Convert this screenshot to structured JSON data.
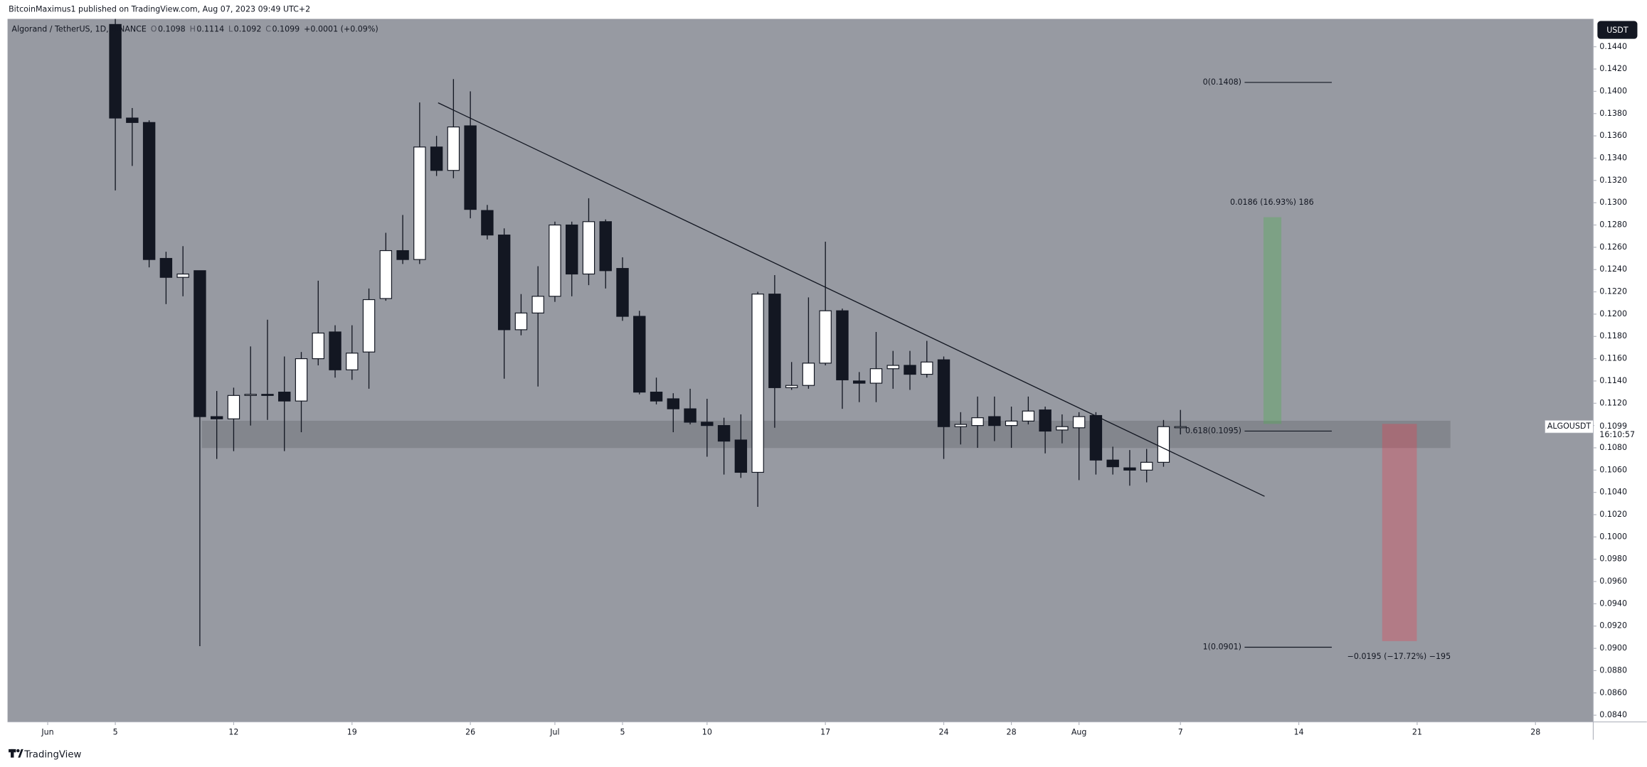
{
  "header": {
    "publisher": "BitcoinMaximus1 published on TradingView.com, Aug 07, 2023 09:49 UTC+2",
    "symbol": "Algorand / TetherUS, 1D, BINANCE",
    "legend_ohlc": [
      {
        "label": "O",
        "value": 0.1098
      },
      {
        "label": "H",
        "value": 0.1114
      },
      {
        "label": "L",
        "value": 0.1092
      },
      {
        "label": "C",
        "value": 0.1099
      }
    ],
    "change": "+0.0001 (+0.09%)",
    "currency": "USDT"
  },
  "footer": "TradingView",
  "chart_data": {
    "type": "candlestick",
    "x": [
      "2023-06-05",
      "2023-06-06",
      "2023-06-07",
      "2023-06-08",
      "2023-06-09",
      "2023-06-10",
      "2023-06-11",
      "2023-06-12",
      "2023-06-13",
      "2023-06-14",
      "2023-06-15",
      "2023-06-16",
      "2023-06-17",
      "2023-06-18",
      "2023-06-19",
      "2023-06-20",
      "2023-06-21",
      "2023-06-22",
      "2023-06-23",
      "2023-06-24",
      "2023-06-25",
      "2023-06-26",
      "2023-06-27",
      "2023-06-28",
      "2023-06-29",
      "2023-06-30",
      "2023-07-01",
      "2023-07-02",
      "2023-07-03",
      "2023-07-04",
      "2023-07-05",
      "2023-07-06",
      "2023-07-07",
      "2023-07-08",
      "2023-07-09",
      "2023-07-10",
      "2023-07-11",
      "2023-07-12",
      "2023-07-13",
      "2023-07-14",
      "2023-07-15",
      "2023-07-16",
      "2023-07-17",
      "2023-07-18",
      "2023-07-19",
      "2023-07-20",
      "2023-07-21",
      "2023-07-22",
      "2023-07-23",
      "2023-07-24",
      "2023-07-25",
      "2023-07-26",
      "2023-07-27",
      "2023-07-28",
      "2023-07-29",
      "2023-07-30",
      "2023-07-31",
      "2023-08-01",
      "2023-08-02",
      "2023-08-03",
      "2023-08-04",
      "2023-08-05",
      "2023-08-06",
      "2023-08-07"
    ],
    "open": [
      0.146,
      0.1376,
      0.1372,
      0.125,
      0.1233,
      0.1239,
      0.1108,
      0.1106,
      0.1127,
      0.1128,
      0.113,
      0.1122,
      0.116,
      0.1184,
      0.115,
      0.1166,
      0.1214,
      0.1257,
      0.1249,
      0.135,
      0.1329,
      0.1369,
      0.1293,
      0.1271,
      0.1186,
      0.1201,
      0.1216,
      0.128,
      0.1236,
      0.1283,
      0.1241,
      0.1198,
      0.113,
      0.1124,
      0.1115,
      0.1103,
      0.11,
      0.1087,
      0.1058,
      0.1218,
      0.1134,
      0.1136,
      0.1156,
      0.1203,
      0.114,
      0.1138,
      0.1151,
      0.1154,
      0.1146,
      0.1159,
      0.1099,
      0.11,
      0.1108,
      0.11,
      0.1104,
      0.1114,
      0.1096,
      0.1098,
      0.1109,
      0.1069,
      0.1062,
      0.106,
      0.1067,
      0.1098
    ],
    "high": [
      0.1465,
      0.1385,
      0.1374,
      0.1256,
      0.1261,
      0.1239,
      0.1131,
      0.1134,
      0.1171,
      0.1195,
      0.1162,
      0.1166,
      0.123,
      0.119,
      0.119,
      0.1223,
      0.1273,
      0.1289,
      0.139,
      0.136,
      0.1411,
      0.14,
      0.1298,
      0.1277,
      0.1218,
      0.1243,
      0.1283,
      0.1283,
      0.1304,
      0.1285,
      0.1251,
      0.1203,
      0.1143,
      0.1129,
      0.1133,
      0.1124,
      0.1107,
      0.111,
      0.122,
      0.1235,
      0.1157,
      0.1215,
      0.1265,
      0.1205,
      0.1148,
      0.1184,
      0.1167,
      0.1167,
      0.1176,
      0.1162,
      0.1112,
      0.1126,
      0.1126,
      0.1117,
      0.1126,
      0.1117,
      0.111,
      0.1112,
      0.1112,
      0.1081,
      0.1078,
      0.1079,
      0.1105,
      0.1114
    ],
    "low": [
      0.1311,
      0.1333,
      0.1242,
      0.1209,
      0.1216,
      0.0902,
      0.107,
      0.1077,
      0.11,
      0.1105,
      0.1077,
      0.1094,
      0.1154,
      0.1143,
      0.1141,
      0.1133,
      0.1212,
      0.1245,
      0.1245,
      0.1324,
      0.1322,
      0.1286,
      0.1267,
      0.1142,
      0.1181,
      0.1135,
      0.1211,
      0.1216,
      0.1226,
      0.1223,
      0.1194,
      0.1128,
      0.1119,
      0.1094,
      0.1101,
      0.1072,
      0.1056,
      0.1053,
      0.1027,
      0.1098,
      0.1132,
      0.1133,
      0.1154,
      0.1115,
      0.1121,
      0.1121,
      0.1133,
      0.1132,
      0.1143,
      0.107,
      0.1083,
      0.108,
      0.1086,
      0.108,
      0.1101,
      0.1075,
      0.1084,
      0.1051,
      0.1056,
      0.1056,
      0.1046,
      0.1049,
      0.1063,
      0.1092
    ],
    "close": [
      0.1376,
      0.1372,
      0.1249,
      0.1233,
      0.1236,
      0.1108,
      0.1106,
      0.1127,
      0.1128,
      0.1127,
      0.1122,
      0.116,
      0.1183,
      0.115,
      0.1165,
      0.1213,
      0.1257,
      0.1249,
      0.135,
      0.1329,
      0.1368,
      0.1294,
      0.1271,
      0.1186,
      0.1201,
      0.1216,
      0.128,
      0.1236,
      0.1283,
      0.1239,
      0.1198,
      0.113,
      0.1122,
      0.1115,
      0.1103,
      0.11,
      0.1086,
      0.1058,
      0.1218,
      0.1134,
      0.1136,
      0.1156,
      0.1203,
      0.1141,
      0.1138,
      0.1151,
      0.1154,
      0.1146,
      0.1157,
      0.1099,
      0.1101,
      0.1107,
      0.11,
      0.1104,
      0.1113,
      0.1095,
      0.1099,
      0.1108,
      0.1069,
      0.1063,
      0.106,
      0.1067,
      0.1099,
      0.1099
    ],
    "up_color": "#ffffff",
    "down_color": "#131722",
    "xlim": [
      "2023-05-29T15:00:00Z",
      "2023-08-31T10:00:00Z"
    ],
    "xticks": [
      {
        "value": "2023-06-01",
        "label": "Jun"
      },
      {
        "value": "2023-06-05",
        "label": "5"
      },
      {
        "value": "2023-06-12",
        "label": "12"
      },
      {
        "value": "2023-06-19",
        "label": "19"
      },
      {
        "value": "2023-06-26",
        "label": "26"
      },
      {
        "value": "2023-07-01",
        "label": "Jul"
      },
      {
        "value": "2023-07-05",
        "label": "5"
      },
      {
        "value": "2023-07-10",
        "label": "10"
      },
      {
        "value": "2023-07-17",
        "label": "17"
      },
      {
        "value": "2023-07-24",
        "label": "24"
      },
      {
        "value": "2023-07-28",
        "label": "28"
      },
      {
        "value": "2023-08-01",
        "label": "Aug"
      },
      {
        "value": "2023-08-07",
        "label": "7"
      },
      {
        "value": "2023-08-14",
        "label": "14"
      },
      {
        "value": "2023-08-21",
        "label": "21"
      },
      {
        "value": "2023-08-28",
        "label": "28"
      }
    ],
    "ylim": [
      0.0834,
      0.1465
    ],
    "yticks": [
      {
        "value": 0.084,
        "label": "0.0840"
      },
      {
        "value": 0.086,
        "label": "0.0860"
      },
      {
        "value": 0.088,
        "label": "0.0880"
      },
      {
        "value": 0.09,
        "label": "0.0900"
      },
      {
        "value": 0.092,
        "label": "0.0920"
      },
      {
        "value": 0.094,
        "label": "0.0940"
      },
      {
        "value": 0.096,
        "label": "0.0960"
      },
      {
        "value": 0.098,
        "label": "0.0980"
      },
      {
        "value": 0.1,
        "label": "0.1000"
      },
      {
        "value": 0.102,
        "label": "0.1020"
      },
      {
        "value": 0.104,
        "label": "0.1040"
      },
      {
        "value": 0.106,
        "label": "0.1060"
      },
      {
        "value": 0.108,
        "label": "0.1080"
      },
      {
        "value": 0.11,
        "label": "0.1100"
      },
      {
        "value": 0.112,
        "label": "0.1120"
      },
      {
        "value": 0.114,
        "label": "0.1140"
      },
      {
        "value": 0.116,
        "label": "0.1160"
      },
      {
        "value": 0.118,
        "label": "0.1180"
      },
      {
        "value": 0.12,
        "label": "0.1200"
      },
      {
        "value": 0.122,
        "label": "0.1220"
      },
      {
        "value": 0.124,
        "label": "0.1240"
      },
      {
        "value": 0.126,
        "label": "0.1260"
      },
      {
        "value": 0.128,
        "label": "0.1280"
      },
      {
        "value": 0.13,
        "label": "0.1300"
      },
      {
        "value": 0.132,
        "label": "0.1320"
      },
      {
        "value": 0.134,
        "label": "0.1340"
      },
      {
        "value": 0.136,
        "label": "0.1360"
      },
      {
        "value": 0.138,
        "label": "0.1380"
      },
      {
        "value": 0.14,
        "label": "0.1400"
      },
      {
        "value": 0.142,
        "label": "0.1420"
      },
      {
        "value": 0.144,
        "label": "0.1440"
      }
    ],
    "grid": false,
    "fib_levels": [
      {
        "value": 0.1408,
        "label": "0(0.1408)"
      },
      {
        "value": 0.1095,
        "label": "0.618(0.1095)"
      },
      {
        "value": 0.0901,
        "label": "1(0.0901)"
      }
    ],
    "last_price": {
      "symbol": "ALGOUSDT",
      "value": 0.1099,
      "countdown": "16:10:57"
    },
    "annotations": {
      "long_position": "0.0186 (16.93%) 186",
      "short_position": "−0.0195 (−17.72%) −195"
    }
  }
}
